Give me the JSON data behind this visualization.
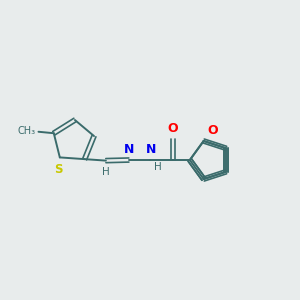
{
  "background_color": "#e8ecec",
  "bond_color": "#3a6b6b",
  "atom_colors": {
    "S": "#c8c800",
    "O": "#ff0000",
    "N": "#0000ee",
    "C": "#3a6b6b",
    "H": "#3a6b6b"
  },
  "figsize": [
    3.0,
    3.0
  ],
  "dpi": 100,
  "xlim": [
    0,
    10
  ],
  "ylim": [
    0,
    10
  ]
}
